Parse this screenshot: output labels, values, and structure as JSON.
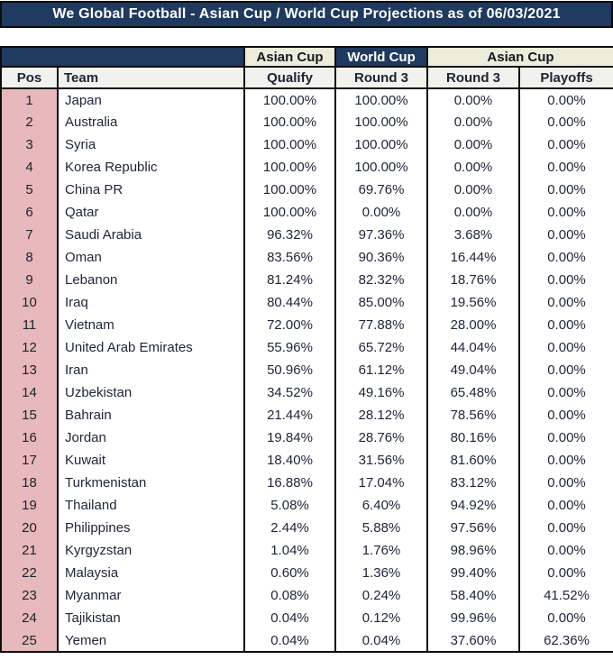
{
  "title": "We Global Football - Asian Cup / World Cup Projections as of 06/03/2021",
  "table": {
    "group_headers": [
      "Asian Cup",
      "World Cup",
      "Asian Cup"
    ],
    "columns": [
      "Pos",
      "Team",
      "Qualify",
      "Round 3",
      "Round 3",
      "Playoffs"
    ],
    "rows": [
      {
        "pos": "1",
        "team": "Japan",
        "qualify": "100.00%",
        "wc_round3": "100.00%",
        "ac_round3": "0.00%",
        "playoffs": "0.00%"
      },
      {
        "pos": "2",
        "team": "Australia",
        "qualify": "100.00%",
        "wc_round3": "100.00%",
        "ac_round3": "0.00%",
        "playoffs": "0.00%"
      },
      {
        "pos": "3",
        "team": "Syria",
        "qualify": "100.00%",
        "wc_round3": "100.00%",
        "ac_round3": "0.00%",
        "playoffs": "0.00%"
      },
      {
        "pos": "4",
        "team": "Korea Republic",
        "qualify": "100.00%",
        "wc_round3": "100.00%",
        "ac_round3": "0.00%",
        "playoffs": "0.00%"
      },
      {
        "pos": "5",
        "team": "China PR",
        "qualify": "100.00%",
        "wc_round3": "69.76%",
        "ac_round3": "0.00%",
        "playoffs": "0.00%"
      },
      {
        "pos": "6",
        "team": "Qatar",
        "qualify": "100.00%",
        "wc_round3": "0.00%",
        "ac_round3": "0.00%",
        "playoffs": "0.00%"
      },
      {
        "pos": "7",
        "team": "Saudi Arabia",
        "qualify": "96.32%",
        "wc_round3": "97.36%",
        "ac_round3": "3.68%",
        "playoffs": "0.00%"
      },
      {
        "pos": "8",
        "team": "Oman",
        "qualify": "83.56%",
        "wc_round3": "90.36%",
        "ac_round3": "16.44%",
        "playoffs": "0.00%"
      },
      {
        "pos": "9",
        "team": "Lebanon",
        "qualify": "81.24%",
        "wc_round3": "82.32%",
        "ac_round3": "18.76%",
        "playoffs": "0.00%"
      },
      {
        "pos": "10",
        "team": "Iraq",
        "qualify": "80.44%",
        "wc_round3": "85.00%",
        "ac_round3": "19.56%",
        "playoffs": "0.00%"
      },
      {
        "pos": "11",
        "team": "Vietnam",
        "qualify": "72.00%",
        "wc_round3": "77.88%",
        "ac_round3": "28.00%",
        "playoffs": "0.00%"
      },
      {
        "pos": "12",
        "team": "United Arab Emirates",
        "qualify": "55.96%",
        "wc_round3": "65.72%",
        "ac_round3": "44.04%",
        "playoffs": "0.00%"
      },
      {
        "pos": "13",
        "team": "Iran",
        "qualify": "50.96%",
        "wc_round3": "61.12%",
        "ac_round3": "49.04%",
        "playoffs": "0.00%"
      },
      {
        "pos": "14",
        "team": "Uzbekistan",
        "qualify": "34.52%",
        "wc_round3": "49.16%",
        "ac_round3": "65.48%",
        "playoffs": "0.00%"
      },
      {
        "pos": "15",
        "team": "Bahrain",
        "qualify": "21.44%",
        "wc_round3": "28.12%",
        "ac_round3": "78.56%",
        "playoffs": "0.00%"
      },
      {
        "pos": "16",
        "team": "Jordan",
        "qualify": "19.84%",
        "wc_round3": "28.76%",
        "ac_round3": "80.16%",
        "playoffs": "0.00%"
      },
      {
        "pos": "17",
        "team": "Kuwait",
        "qualify": "18.40%",
        "wc_round3": "31.56%",
        "ac_round3": "81.60%",
        "playoffs": "0.00%"
      },
      {
        "pos": "18",
        "team": "Turkmenistan",
        "qualify": "16.88%",
        "wc_round3": "17.04%",
        "ac_round3": "83.12%",
        "playoffs": "0.00%"
      },
      {
        "pos": "19",
        "team": "Thailand",
        "qualify": "5.08%",
        "wc_round3": "6.40%",
        "ac_round3": "94.92%",
        "playoffs": "0.00%"
      },
      {
        "pos": "20",
        "team": "Philippines",
        "qualify": "2.44%",
        "wc_round3": "5.88%",
        "ac_round3": "97.56%",
        "playoffs": "0.00%"
      },
      {
        "pos": "21",
        "team": "Kyrgyzstan",
        "qualify": "1.04%",
        "wc_round3": "1.76%",
        "ac_round3": "98.96%",
        "playoffs": "0.00%"
      },
      {
        "pos": "22",
        "team": "Malaysia",
        "qualify": "0.60%",
        "wc_round3": "1.36%",
        "ac_round3": "99.40%",
        "playoffs": "0.00%"
      },
      {
        "pos": "23",
        "team": "Myanmar",
        "qualify": "0.08%",
        "wc_round3": "0.24%",
        "ac_round3": "58.40%",
        "playoffs": "41.52%"
      },
      {
        "pos": "24",
        "team": "Tajikistan",
        "qualify": "0.04%",
        "wc_round3": "0.12%",
        "ac_round3": "99.96%",
        "playoffs": "0.00%"
      },
      {
        "pos": "25",
        "team": "Yemen",
        "qualify": "0.04%",
        "wc_round3": "0.04%",
        "ac_round3": "37.60%",
        "playoffs": "62.36%"
      }
    ]
  },
  "colors": {
    "navy": "#1F3A5E",
    "cream": "#ECECDA",
    "header_gray": "#F1F1ED",
    "pos_pink": "#E7B9BC",
    "border": "#0d0d0d",
    "title_text": "#FFFFFF",
    "background": "#FFFFFF"
  }
}
